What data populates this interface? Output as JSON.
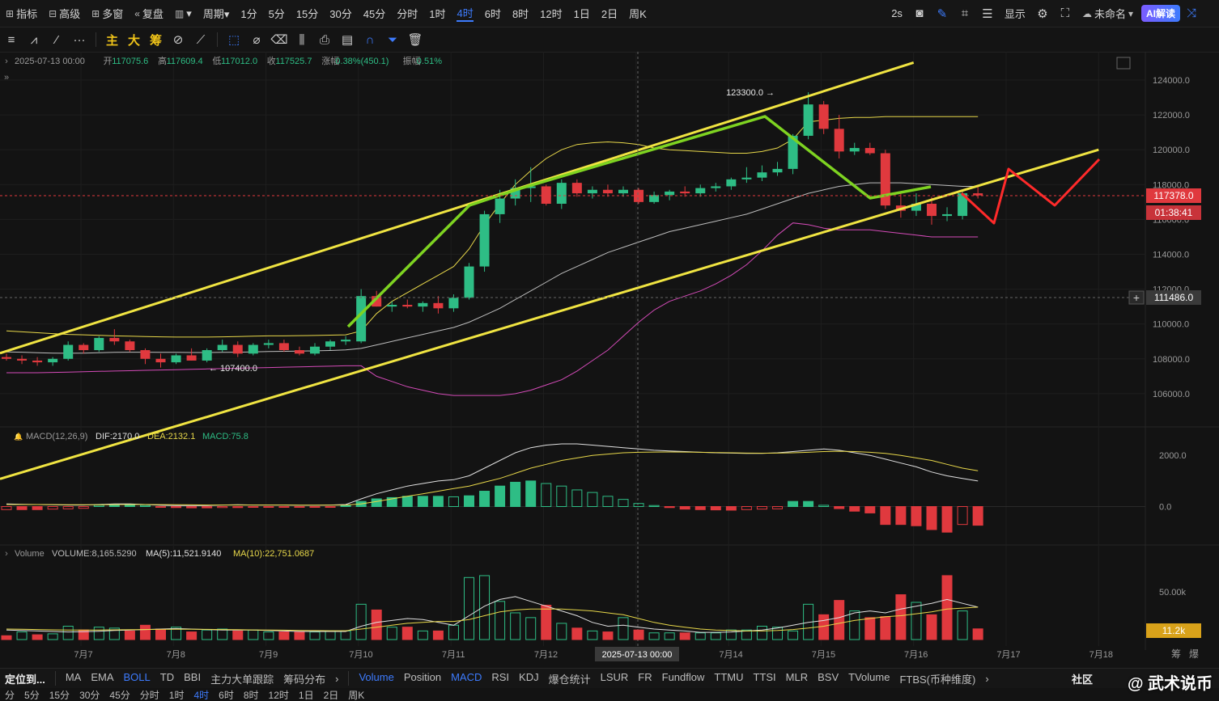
{
  "topbar": {
    "items": [
      {
        "icon": "indicator-icon",
        "label": "指标"
      },
      {
        "icon": "advanced-icon",
        "label": "高级"
      },
      {
        "icon": "multi-window-icon",
        "label": "多窗"
      },
      {
        "icon": "replay-icon",
        "label": "复盘"
      },
      {
        "icon": "chart-type-icon",
        "label": "▾"
      },
      {
        "icon": "",
        "label": "周期▾"
      }
    ],
    "intervals": [
      "1分",
      "5分",
      "15分",
      "30分",
      "45分",
      "分时",
      "1时",
      "4时",
      "6时",
      "8时",
      "12时",
      "1日",
      "2日",
      "周K"
    ],
    "active_interval": "4时",
    "right": {
      "refresh": "2s",
      "display": "显示",
      "name": "未命名",
      "ai": "AI解读"
    }
  },
  "toolbar": {
    "chars": [
      "主",
      "大",
      "筹"
    ]
  },
  "ohlc": {
    "datetime": "2025-07-13 00:00",
    "open_label": "开",
    "open": "117075.6",
    "high_label": "高",
    "high": "117609.4",
    "low_label": "低",
    "low": "117012.0",
    "close_label": "收",
    "close": "117525.7",
    "change_label": "涨幅",
    "change": "0.38%(450.1)",
    "amp_label": "振幅",
    "amp": "0.51%"
  },
  "macd_legend": {
    "name": "MACD(12,26,9)",
    "dif": "DIF:2170.0",
    "dea": "DEA:2132.1",
    "macd": "MACD:75.8"
  },
  "vol_legend": {
    "name": "Volume",
    "volume": "VOLUME:8,165.5290",
    "ma5": "MA(5):11,521.9140",
    "ma10": "MA(10):22,751.0687"
  },
  "price_axis": [
    "124000.0",
    "122000.0",
    "120000.0",
    "118000.0",
    "116000.0",
    "114000.0",
    "112000.0",
    "110000.0",
    "108000.0",
    "106000.0"
  ],
  "macd_axis": [
    "2000.0",
    "0.0"
  ],
  "vol_axis": [
    "50.00k"
  ],
  "badges": {
    "current": "117378.0",
    "countdown": "01:38:41",
    "crosshair": "111486.0",
    "volume": "11.2k",
    "crosshair_date": "2025-07-13 00:00"
  },
  "annotations": {
    "high": "123300.0",
    "low": "107400.0"
  },
  "x_axis": [
    "7月7",
    "7月8",
    "7月9",
    "7月10",
    "7月11",
    "7月12",
    "7月13",
    "7月14",
    "7月15",
    "7月16",
    "7月17",
    "7月18"
  ],
  "axis_right": [
    "筹",
    "爆"
  ],
  "bottombar": {
    "left": "定位到...",
    "main": [
      "MA",
      "EMA",
      "BOLL",
      "TD",
      "BBI",
      "主力大单跟踪",
      "筹码分布"
    ],
    "main_active": "BOLL",
    "sub": [
      "Volume",
      "Position",
      "MACD",
      "RSI",
      "KDJ",
      "爆仓统计",
      "LSUR",
      "FR",
      "Fundflow",
      "TTMU",
      "TTSI",
      "MLR",
      "BSV",
      "TVolume",
      "FTBS(币种维度)"
    ],
    "sub_active": [
      "Volume",
      "MACD"
    ],
    "right": "社区"
  },
  "bottombar2": [
    "分",
    "5分",
    "15分",
    "30分",
    "45分",
    "分时",
    "1时",
    "4时",
    "6时",
    "8时",
    "12时",
    "1日",
    "2日",
    "周K"
  ],
  "watermark": "@ 武术说币",
  "colors": {
    "up": "#2ebd85",
    "down": "#e0393e",
    "yellow": "#f0e442",
    "green": "#7ed321",
    "red": "#ff2a2a",
    "accent": "#3d7bfd"
  },
  "chart_data": {
    "type": "candlestick",
    "interval": "4h",
    "candles": [
      [
        108100,
        108300,
        107900,
        108000
      ],
      [
        108000,
        108200,
        107700,
        107900
      ],
      [
        107900,
        108100,
        107600,
        107800
      ],
      [
        107800,
        108100,
        107600,
        108000
      ],
      [
        108000,
        109000,
        107900,
        108800
      ],
      [
        108800,
        108900,
        108300,
        108500
      ],
      [
        108500,
        109300,
        108400,
        109200
      ],
      [
        109200,
        109700,
        108800,
        109000
      ],
      [
        109000,
        109100,
        108400,
        108500
      ],
      [
        108500,
        108600,
        107700,
        108000
      ],
      [
        108000,
        108300,
        107500,
        107800
      ],
      [
        107800,
        108300,
        107700,
        108200
      ],
      [
        108200,
        108600,
        107900,
        107900
      ],
      [
        107900,
        108600,
        107800,
        108500
      ],
      [
        108500,
        109100,
        108400,
        108800
      ],
      [
        108800,
        109000,
        108100,
        108300
      ],
      [
        108300,
        108900,
        108200,
        108800
      ],
      [
        108800,
        109100,
        108600,
        108900
      ],
      [
        108900,
        109100,
        108400,
        108500
      ],
      [
        108500,
        108700,
        108200,
        108300
      ],
      [
        108300,
        108900,
        108200,
        108700
      ],
      [
        108700,
        109100,
        108500,
        109000
      ],
      [
        109000,
        109300,
        108800,
        109100
      ],
      [
        109000,
        112000,
        108900,
        111600
      ],
      [
        111600,
        111900,
        111000,
        111000
      ],
      [
        111000,
        111300,
        110700,
        111100
      ],
      [
        111100,
        111400,
        110900,
        111000
      ],
      [
        111000,
        111300,
        110700,
        111200
      ],
      [
        111200,
        111600,
        110600,
        110900
      ],
      [
        110900,
        111700,
        110700,
        111500
      ],
      [
        111500,
        113500,
        111400,
        113300
      ],
      [
        113300,
        116500,
        113000,
        116300
      ],
      [
        116300,
        117700,
        115800,
        117200
      ],
      [
        117200,
        118300,
        116800,
        117800
      ],
      [
        117800,
        119000,
        117000,
        117900
      ],
      [
        117900,
        118000,
        116800,
        116900
      ],
      [
        116900,
        118300,
        116600,
        118100
      ],
      [
        118100,
        118300,
        117300,
        117500
      ],
      [
        117500,
        117900,
        117200,
        117700
      ],
      [
        117700,
        118000,
        117300,
        117500
      ],
      [
        117500,
        117900,
        117300,
        117700
      ],
      [
        117700,
        117800,
        116900,
        117000
      ],
      [
        117000,
        117600,
        116900,
        117400
      ],
      [
        117400,
        117700,
        117100,
        117600
      ],
      [
        117600,
        117900,
        117300,
        117500
      ],
      [
        117500,
        118000,
        117300,
        117800
      ],
      [
        117800,
        118100,
        117600,
        117900
      ],
      [
        117900,
        118400,
        117700,
        118300
      ],
      [
        118300,
        119000,
        118100,
        118400
      ],
      [
        118400,
        119100,
        118200,
        118700
      ],
      [
        118700,
        119300,
        118500,
        118900
      ],
      [
        118900,
        120900,
        118600,
        120800
      ],
      [
        120800,
        123300,
        120600,
        122600
      ],
      [
        122600,
        122800,
        120900,
        121200
      ],
      [
        121200,
        122000,
        119500,
        119900
      ],
      [
        119900,
        120400,
        119700,
        120100
      ],
      [
        120100,
        120400,
        119700,
        119800
      ],
      [
        119800,
        120000,
        116600,
        116800
      ],
      [
        116800,
        117500,
        116100,
        116500
      ],
      [
        116500,
        117500,
        116200,
        116900
      ],
      [
        116900,
        117300,
        115700,
        116200
      ],
      [
        116200,
        116700,
        115900,
        116300
      ],
      [
        116200,
        117600,
        116000,
        117500
      ],
      [
        117500,
        117900,
        117200,
        117378
      ]
    ],
    "boll": {
      "upper": [
        109600,
        109550,
        109500,
        109450,
        109400,
        109380,
        109350,
        109320,
        109300,
        109280,
        109260,
        109250,
        109250,
        109250,
        109260,
        109280,
        109300,
        109320,
        109320,
        109330,
        109340,
        109360,
        109380,
        109600,
        110600,
        111300,
        111800,
        112300,
        112800,
        113300,
        114300,
        115700,
        116900,
        118000,
        118800,
        119500,
        120000,
        120300,
        120400,
        120450,
        120400,
        120300,
        120100,
        120000,
        119950,
        119900,
        119850,
        119800,
        119800,
        119900,
        120100,
        120600,
        121600,
        121700,
        121800,
        121850,
        121850,
        121900,
        121900,
        121900,
        121900,
        121900,
        121900,
        121900
      ],
      "mid": [
        108400,
        108380,
        108350,
        108330,
        108320,
        108330,
        108350,
        108370,
        108380,
        108380,
        108370,
        108370,
        108360,
        108360,
        108370,
        108380,
        108400,
        108420,
        108430,
        108440,
        108460,
        108480,
        108510,
        108600,
        108800,
        109000,
        109200,
        109400,
        109600,
        109800,
        110100,
        110500,
        110900,
        111400,
        111900,
        112400,
        112900,
        113300,
        113700,
        114100,
        114400,
        114700,
        115000,
        115300,
        115500,
        115700,
        115900,
        116100,
        116300,
        116600,
        116900,
        117200,
        117500,
        117700,
        117900,
        118000,
        118100,
        118100,
        118100,
        118050,
        118000,
        117950,
        117900,
        117900
      ],
      "lower": [
        107200,
        107200,
        107200,
        107220,
        107240,
        107260,
        107280,
        107300,
        107320,
        107340,
        107360,
        107380,
        107400,
        107420,
        107440,
        107460,
        107480,
        107500,
        107520,
        107540,
        107560,
        107580,
        107600,
        107600,
        107000,
        106700,
        106400,
        106200,
        106000,
        105900,
        105900,
        105900,
        105900,
        106000,
        106200,
        106500,
        106800,
        107300,
        107900,
        108500,
        109300,
        110100,
        110800,
        111300,
        111600,
        111900,
        112300,
        112800,
        113400,
        114200,
        115100,
        115800,
        115700,
        115500,
        115400,
        115400,
        115400,
        115300,
        115200,
        115100,
        115000,
        115000,
        115000,
        115000
      ]
    },
    "macd": {
      "dif": [
        100,
        90,
        80,
        70,
        60,
        60,
        80,
        100,
        100,
        80,
        50,
        40,
        40,
        40,
        60,
        70,
        60,
        60,
        60,
        50,
        50,
        60,
        80,
        300,
        500,
        650,
        800,
        900,
        1000,
        1050,
        1200,
        1500,
        1800,
        2100,
        2300,
        2400,
        2450,
        2450,
        2400,
        2350,
        2300,
        2250,
        2200,
        2170,
        2150,
        2120,
        2100,
        2090,
        2080,
        2080,
        2100,
        2150,
        2200,
        2250,
        2200,
        2100,
        2000,
        1850,
        1700,
        1550,
        1350,
        1200,
        1100,
        1000
      ],
      "dea": [
        80,
        80,
        80,
        75,
        70,
        70,
        70,
        75,
        80,
        80,
        75,
        70,
        65,
        60,
        60,
        60,
        60,
        60,
        60,
        58,
        57,
        57,
        60,
        100,
        200,
        300,
        400,
        500,
        600,
        700,
        800,
        950,
        1100,
        1300,
        1500,
        1650,
        1800,
        1900,
        2000,
        2050,
        2100,
        2120,
        2130,
        2132,
        2130,
        2120,
        2110,
        2100,
        2090,
        2085,
        2090,
        2100,
        2120,
        2150,
        2160,
        2150,
        2120,
        2080,
        2000,
        1900,
        1800,
        1650,
        1500,
        1400
      ],
      "hist": [
        -120,
        -120,
        -120,
        -100,
        -90,
        -70,
        50,
        60,
        70,
        40,
        -20,
        -40,
        -50,
        -50,
        -40,
        -40,
        -30,
        -30,
        -30,
        -20,
        -20,
        -20,
        50,
        200,
        300,
        350,
        400,
        400,
        400,
        380,
        420,
        600,
        800,
        950,
        1000,
        900,
        800,
        650,
        550,
        400,
        280,
        120,
        40,
        -40,
        -100,
        -120,
        -130,
        -140,
        -120,
        -100,
        -90,
        200,
        200,
        50,
        -80,
        -180,
        -250,
        -700,
        -700,
        -750,
        -900,
        -1000,
        -700,
        -730
      ]
    },
    "volume": {
      "values": [
        4000,
        8000,
        5000,
        6000,
        14000,
        10000,
        13000,
        12000,
        9000,
        15000,
        11000,
        13000,
        8000,
        10000,
        11000,
        9000,
        10000,
        8000,
        8000,
        8000,
        8000,
        9000,
        9000,
        37000,
        31000,
        13000,
        13000,
        9000,
        9000,
        15000,
        65000,
        67000,
        40000,
        28000,
        23000,
        36000,
        17000,
        12000,
        9000,
        8000,
        23000,
        10000,
        7000,
        7000,
        7000,
        7000,
        7000,
        10000,
        10000,
        14000,
        13000,
        9000,
        37000,
        26000,
        41000,
        30000,
        23000,
        24000,
        47000,
        39000,
        26000,
        67000,
        30000,
        11200
      ],
      "up": [
        false,
        true,
        false,
        true,
        true,
        false,
        true,
        true,
        false,
        false,
        false,
        true,
        false,
        true,
        true,
        false,
        true,
        true,
        false,
        false,
        true,
        true,
        true,
        true,
        false,
        true,
        false,
        true,
        false,
        true,
        true,
        true,
        true,
        true,
        true,
        false,
        true,
        false,
        true,
        false,
        true,
        false,
        true,
        true,
        false,
        true,
        true,
        true,
        true,
        true,
        true,
        true,
        true,
        false,
        false,
        true,
        false,
        false,
        false,
        true,
        false,
        false,
        true,
        false
      ],
      "ma5": [
        10000,
        9500,
        9000,
        8500,
        8000,
        8300,
        8700,
        9500,
        10000,
        10500,
        11000,
        11500,
        11000,
        10500,
        10000,
        10000,
        10000,
        9500,
        9000,
        8500,
        8500,
        8500,
        8500,
        14000,
        18000,
        20000,
        22000,
        21000,
        18000,
        15000,
        25000,
        35000,
        42000,
        45000,
        40000,
        35000,
        30000,
        25000,
        18000,
        14000,
        15000,
        13000,
        11000,
        10000,
        9000,
        7500,
        7500,
        8000,
        9000,
        10000,
        12000,
        15000,
        18000,
        20000,
        23000,
        28000,
        30000,
        28000,
        32000,
        35000,
        38000,
        42000,
        38000,
        34000
      ],
      "ma10": [
        11000,
        10800,
        10500,
        10200,
        10000,
        10000,
        10000,
        10200,
        10300,
        10500,
        10700,
        10800,
        10800,
        10700,
        10500,
        10300,
        10100,
        10000,
        9800,
        9600,
        9400,
        9200,
        9200,
        11000,
        13000,
        15000,
        17000,
        18000,
        19000,
        19000,
        21000,
        25000,
        29000,
        31000,
        32000,
        32000,
        32000,
        31000,
        30000,
        28000,
        26000,
        22000,
        18000,
        15000,
        13000,
        11000,
        10000,
        9500,
        9000,
        9000,
        9500,
        10500,
        12000,
        14000,
        17000,
        20000,
        22000,
        24000,
        25000,
        27000,
        29000,
        32000,
        33000,
        34000
      ]
    },
    "overlays": {
      "yellow_channel_upper": {
        "from": [
          "7月7",
          109800
        ],
        "to": [
          "7月16",
          125000
        ]
      },
      "yellow_channel_lower": {
        "from": [
          "7月7",
          102500
        ],
        "to": [
          "7月18",
          120000
        ]
      },
      "green_path": [
        [
          "7月10",
          109900
        ],
        [
          "7月11",
          116700
        ],
        [
          "7月12",
          117600
        ],
        [
          "7月14",
          121800
        ],
        [
          "7月15",
          116900
        ],
        [
          "7月16",
          117800
        ]
      ],
      "red_projection": [
        [
          "7月16",
          117400
        ],
        [
          "7月16",
          115800
        ],
        [
          "7月17",
          119000
        ],
        [
          "7月17",
          116500
        ],
        [
          "7月18",
          120000
        ]
      ]
    }
  }
}
